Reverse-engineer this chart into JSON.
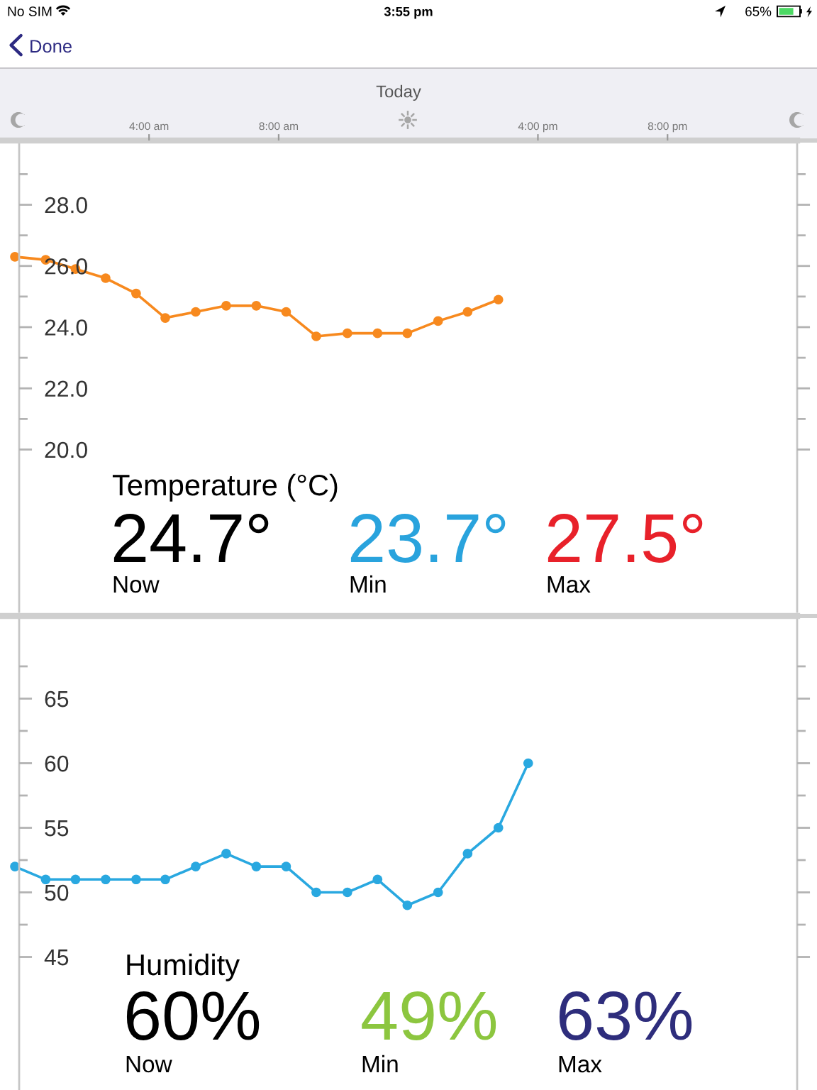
{
  "chart_data": [
    {
      "type": "line",
      "title": "Temperature (°C)",
      "xlabel": "Today",
      "x": [
        -0.14,
        0.81,
        1.73,
        2.66,
        3.6,
        4.5,
        5.44,
        6.38,
        7.31,
        8.23,
        9.16,
        10.12,
        11.05,
        11.97,
        12.92,
        13.83,
        14.78
      ],
      "values": [
        26.3,
        26.2,
        25.9,
        25.6,
        25.1,
        24.3,
        24.5,
        24.7,
        24.7,
        24.5,
        23.7,
        23.8,
        23.8,
        23.8,
        24.2,
        24.5,
        24.9
      ],
      "color": "#f7891e",
      "marker": "circle",
      "xlim": [
        -0.6,
        24.0
      ],
      "xticks": [
        {
          "value": 4,
          "label": "4:00 am"
        },
        {
          "value": 8,
          "label": "8:00 am"
        },
        {
          "value": 16,
          "label": "4:00 pm"
        },
        {
          "value": 20,
          "label": "8:00 pm"
        }
      ],
      "ylim": [
        14.7,
        30.1
      ],
      "yticks": [
        {
          "value": 20,
          "label": "20.0"
        },
        {
          "value": 21,
          "label": null
        },
        {
          "value": 22,
          "label": "22.0"
        },
        {
          "value": 23,
          "label": null
        },
        {
          "value": 24,
          "label": "24.0"
        },
        {
          "value": 25,
          "label": null
        },
        {
          "value": 26,
          "label": "26.0"
        },
        {
          "value": 27,
          "label": null
        },
        {
          "value": 28,
          "label": "28.0"
        },
        {
          "value": 29,
          "label": null
        }
      ],
      "annotations": [
        "No SIM",
        "3:55 pm",
        "65%",
        "Done",
        "24.7°",
        "Now",
        "23.7°",
        "Min",
        "27.5°",
        "Max"
      ]
    },
    {
      "type": "line",
      "title": "Humidity",
      "x": [
        -0.14,
        0.81,
        1.73,
        2.66,
        3.6,
        4.5,
        5.44,
        6.38,
        7.31,
        8.23,
        9.16,
        10.12,
        11.05,
        11.97,
        12.92,
        13.83,
        14.78,
        15.7
      ],
      "values": [
        52,
        51,
        51,
        51,
        51,
        51,
        52,
        53,
        52,
        52,
        50,
        50,
        51,
        49,
        50,
        53,
        55,
        60
      ],
      "color": "#29a8e0",
      "marker": "circle",
      "xlim": [
        -0.6,
        24.0
      ],
      "tick_labels": "y",
      "ylim": [
        34.7,
        71.4
      ],
      "yticks": [
        45,
        {
          "value": 47.5,
          "label": null
        },
        50,
        {
          "value": 52.5,
          "label": null
        },
        55,
        {
          "value": 57.5,
          "label": null
        },
        60,
        {
          "value": 62.5,
          "label": null
        },
        65,
        {
          "value": 67.5,
          "label": null
        }
      ],
      "annotations": [
        "60%",
        "Now",
        "49%",
        "Min",
        "63%",
        "Max"
      ]
    }
  ]
}
